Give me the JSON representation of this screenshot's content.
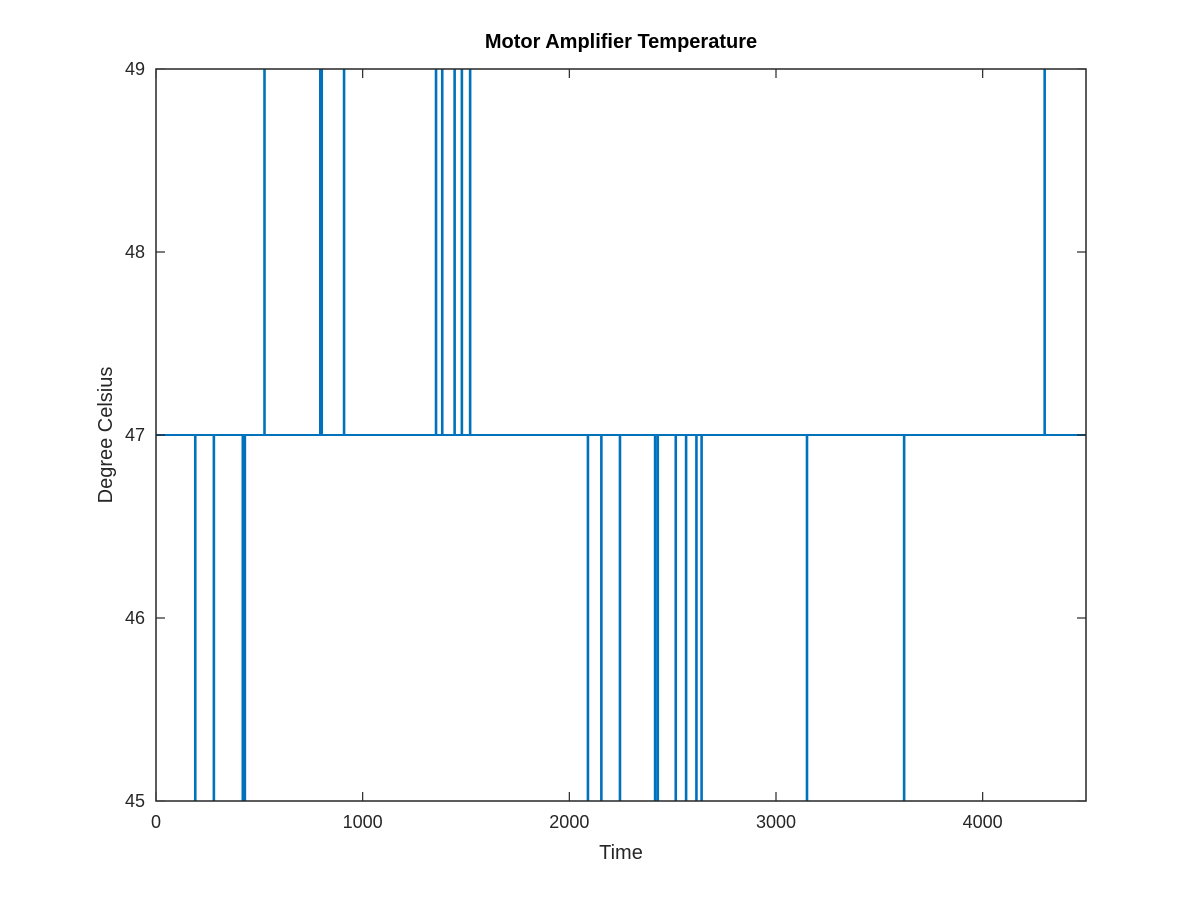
{
  "chart_data": {
    "type": "line",
    "title": "Motor Amplifier Temperature",
    "xlabel": "Time",
    "ylabel": "Degree Celsius",
    "xlim": [
      0,
      4500
    ],
    "ylim": [
      45,
      49
    ],
    "xticks": [
      0,
      1000,
      2000,
      3000,
      4000
    ],
    "yticks": [
      45,
      46,
      47,
      48,
      49
    ],
    "grid": false,
    "legend": "none",
    "baseline": 47,
    "series": [
      {
        "color": "#0072BD",
        "description_values": "step signal at 47 with brief excursions to 49 (up) or 45 (down)",
        "excursions": [
          {
            "x": 190,
            "y": 45
          },
          {
            "x": 280,
            "y": 45
          },
          {
            "x": 420,
            "y": 45
          },
          {
            "x": 430,
            "y": 45
          },
          {
            "x": 525,
            "y": 49
          },
          {
            "x": 795,
            "y": 49
          },
          {
            "x": 802,
            "y": 49
          },
          {
            "x": 910,
            "y": 49
          },
          {
            "x": 1355,
            "y": 49
          },
          {
            "x": 1385,
            "y": 49
          },
          {
            "x": 1445,
            "y": 49
          },
          {
            "x": 1480,
            "y": 49
          },
          {
            "x": 1520,
            "y": 49
          },
          {
            "x": 2090,
            "y": 45
          },
          {
            "x": 2155,
            "y": 45
          },
          {
            "x": 2245,
            "y": 45
          },
          {
            "x": 2415,
            "y": 45
          },
          {
            "x": 2428,
            "y": 45
          },
          {
            "x": 2515,
            "y": 45
          },
          {
            "x": 2565,
            "y": 45
          },
          {
            "x": 2615,
            "y": 45
          },
          {
            "x": 2640,
            "y": 45
          },
          {
            "x": 3150,
            "y": 45
          },
          {
            "x": 3620,
            "y": 45
          },
          {
            "x": 4300,
            "y": 49
          }
        ]
      }
    ]
  }
}
